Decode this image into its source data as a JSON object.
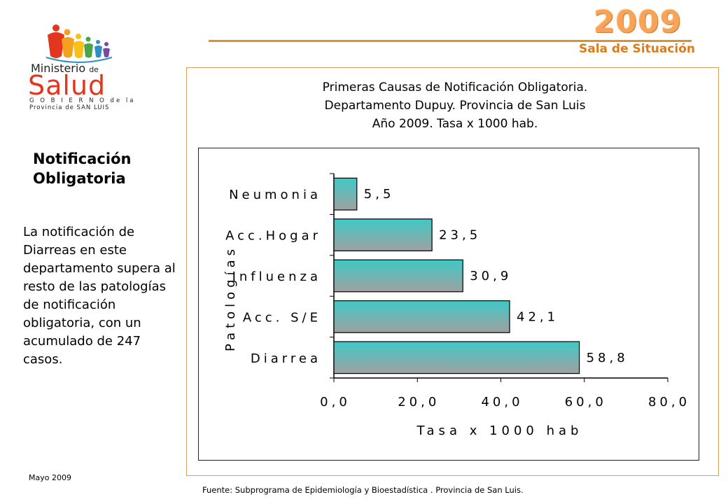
{
  "header": {
    "year": "2009",
    "subtitle": "Sala de Situación"
  },
  "logo": {
    "line1": "Ministerio",
    "line1_de": "de",
    "line2": "Salud",
    "line3": "G O B I E R N O de la",
    "line4": "Provincia de SAN LUIS"
  },
  "sidebar": {
    "title": "Notificación Obligatoria",
    "summary": "La notificación de Diarreas en este departamento supera al resto de las patologías de notificación obligatoria, con un acumulado de 247 casos."
  },
  "footer": {
    "date": "Mayo 2009",
    "source": "Fuente: Subprograma de Epidemiología y Bioestadística . Provincia de San Luis."
  },
  "colors": {
    "bar_top": "#3ec9c6",
    "bar_bottom": "#a0a0a0",
    "accent": "#e07a14",
    "frame": "#d8a25a"
  },
  "chart_data": {
    "type": "bar",
    "orientation": "horizontal",
    "title": "Primeras Causas de Notificación Obligatoria. Departamento Dupuy. Provincia de San Luis Año 2009. Tasa x 1000 hab.",
    "title_lines": [
      "Primeras Causas de Notificación Obligatoria.",
      "Departamento Dupuy. Provincia de San Luis",
      "Año 2009. Tasa x 1000 hab."
    ],
    "categories": [
      "Neumonia",
      "Acc.Hogar",
      "Influenza",
      "Acc. S/E",
      "Diarrea"
    ],
    "values": [
      5.5,
      23.5,
      30.9,
      42.1,
      58.8
    ],
    "value_labels": [
      "5,5",
      "23,5",
      "30,9",
      "42,1",
      "58,8"
    ],
    "xlabel": "Tasa x 1000 hab",
    "ylabel": "Patologías",
    "xlim": [
      0,
      80
    ],
    "xticks": [
      0,
      20,
      40,
      60,
      80
    ],
    "xtick_labels": [
      "0,0",
      "20,0",
      "40,0",
      "60,0",
      "80,0"
    ],
    "grid": false,
    "legend": "none"
  }
}
